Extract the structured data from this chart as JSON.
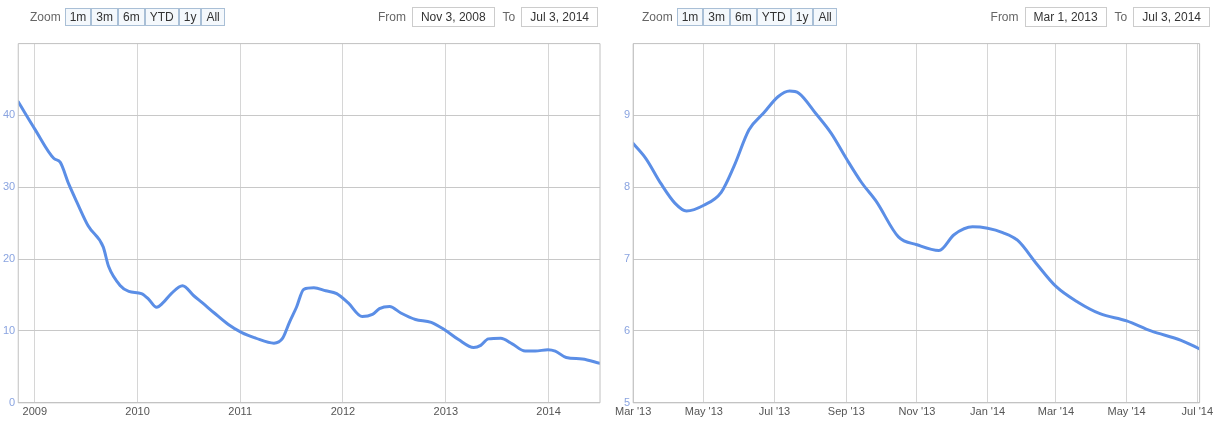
{
  "chart_data": [
    {
      "type": "line",
      "annotations": [
        "Zoom",
        "1m",
        "3m",
        "6m",
        "YTD",
        "1y",
        "All",
        "From",
        "Nov 3, 2008",
        "To",
        "Jul 3, 2014"
      ],
      "x": [
        "2008-11-03",
        "2009-01-01",
        "2009-03-10",
        "2009-04-01",
        "2009-05-01",
        "2009-06-01",
        "2009-07-10",
        "2009-09-01",
        "2009-09-20",
        "2009-11-01",
        "2009-12-01",
        "2010-01-15",
        "2010-02-10",
        "2010-03-10",
        "2010-04-01",
        "2010-05-01",
        "2010-06-10",
        "2010-07-20",
        "2010-08-20",
        "2010-10-01",
        "2010-11-20",
        "2011-01-05",
        "2011-02-25",
        "2011-05-01",
        "2011-06-01",
        "2011-06-25",
        "2011-07-20",
        "2011-08-15",
        "2011-09-20",
        "2011-11-01",
        "2011-12-10",
        "2012-01-20",
        "2012-03-10",
        "2012-04-15",
        "2012-05-10",
        "2012-06-15",
        "2012-07-25",
        "2012-09-15",
        "2012-11-10",
        "2012-12-30",
        "2013-02-15",
        "2013-04-10",
        "2013-05-05",
        "2013-06-01",
        "2013-07-15",
        "2013-08-25",
        "2013-10-10",
        "2013-11-15",
        "2013-12-30",
        "2014-01-25",
        "2014-03-05",
        "2014-05-01",
        "2014-07-03"
      ],
      "series": [
        {
          "color": "#5b8ee6",
          "values": [
            41.9,
            38.1,
            34.0,
            33.5,
            30.5,
            27.8,
            24.6,
            21.7,
            19.0,
            16.3,
            15.5,
            15.2,
            14.4,
            13.3,
            13.9,
            15.2,
            16.3,
            14.9,
            13.9,
            12.5,
            10.9,
            9.8,
            9.0,
            8.3,
            9.0,
            11.2,
            13.3,
            15.8,
            16.0,
            15.6,
            15.2,
            13.9,
            12.0,
            12.3,
            13.1,
            13.4,
            12.5,
            11.6,
            11.2,
            10.1,
            8.8,
            7.7,
            8.0,
            8.9,
            9.0,
            8.2,
            7.2,
            7.2,
            7.4,
            7.2,
            6.3,
            6.1,
            5.5
          ]
        }
      ],
      "xlim": [
        "2008-11-03",
        "2014-07-03"
      ],
      "xticks": [
        {
          "value": "2009-01-01",
          "label": "2009"
        },
        {
          "value": "2010-01-01",
          "label": "2010"
        },
        {
          "value": "2011-01-01",
          "label": "2011"
        },
        {
          "value": "2012-01-01",
          "label": "2012"
        },
        {
          "value": "2013-01-01",
          "label": "2013"
        },
        {
          "value": "2014-01-01",
          "label": "2014"
        }
      ],
      "ylim": [
        0,
        50
      ],
      "yticks": [
        0,
        10,
        20,
        30,
        40
      ],
      "grid": true,
      "marker": "none",
      "line_style": "solid"
    },
    {
      "type": "line",
      "annotations": [
        "Zoom",
        "1m",
        "3m",
        "6m",
        "YTD",
        "1y",
        "All",
        "From",
        "Mar 1, 2013",
        "To",
        "Jul 3, 2014"
      ],
      "x": [
        "2013-03-01",
        "2013-03-12",
        "2013-03-25",
        "2013-04-06",
        "2013-04-16",
        "2013-05-01",
        "2013-05-16",
        "2013-05-27",
        "2013-06-09",
        "2013-06-22",
        "2013-07-04",
        "2013-07-14",
        "2013-07-22",
        "2013-08-06",
        "2013-08-19",
        "2013-09-01",
        "2013-09-14",
        "2013-09-27",
        "2013-10-16",
        "2013-11-01",
        "2013-11-20",
        "2013-12-03",
        "2013-12-19",
        "2014-01-01",
        "2014-01-14",
        "2014-01-27",
        "2014-02-12",
        "2014-03-01",
        "2014-03-20",
        "2014-04-08",
        "2014-05-01",
        "2014-05-22",
        "2014-06-17",
        "2014-07-03"
      ],
      "series": [
        {
          "color": "#5b8ee6",
          "values": [
            8.61,
            8.4,
            8.05,
            7.78,
            7.67,
            7.75,
            7.93,
            8.29,
            8.8,
            9.04,
            9.26,
            9.34,
            9.31,
            9.02,
            8.75,
            8.4,
            8.07,
            7.8,
            7.31,
            7.2,
            7.12,
            7.34,
            7.45,
            7.43,
            7.37,
            7.26,
            6.94,
            6.62,
            6.4,
            6.24,
            6.14,
            6.0,
            5.87,
            5.75
          ]
        }
      ],
      "xlim": [
        "2013-03-01",
        "2014-07-03"
      ],
      "xticks": [
        {
          "value": "2013-03-01",
          "label": "Mar '13"
        },
        {
          "value": "2013-05-01",
          "label": "May '13"
        },
        {
          "value": "2013-07-01",
          "label": "Jul '13"
        },
        {
          "value": "2013-09-01",
          "label": "Sep '13"
        },
        {
          "value": "2013-11-01",
          "label": "Nov '13"
        },
        {
          "value": "2014-01-01",
          "label": "Jan '14"
        },
        {
          "value": "2014-03-01",
          "label": "Mar '14"
        },
        {
          "value": "2014-05-01",
          "label": "May '14"
        },
        {
          "value": "2014-07-01",
          "label": "Jul '14"
        }
      ],
      "ylim": [
        5,
        10
      ],
      "yticks": [
        5,
        6,
        7,
        8,
        9
      ],
      "grid": true,
      "marker": "none",
      "line_style": "solid"
    }
  ]
}
